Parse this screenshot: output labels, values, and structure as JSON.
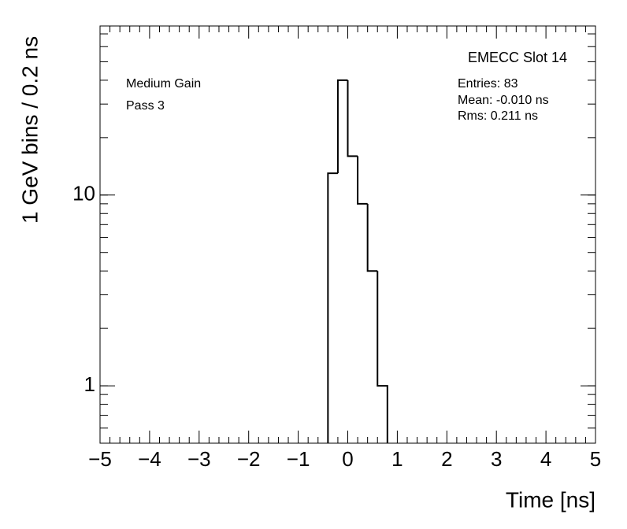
{
  "chart_data": {
    "type": "histogram",
    "title": "EMECC Slot 14",
    "annotations": [
      "Medium Gain",
      "Pass 3"
    ],
    "stats": [
      "Entries: 83",
      "Mean: -0.010 ns",
      "Rms: 0.211 ns"
    ],
    "x_label": "Time [ns]",
    "y_label": "1 GeV bins / 0.2 ns",
    "bins": [
      -0.4,
      -0.2,
      0,
      0.2,
      0.4,
      0.6,
      0.8
    ],
    "values": [
      13,
      40,
      16,
      9,
      4,
      1
    ],
    "color": "#000000",
    "log_y": true,
    "xlim": [
      -5,
      5
    ],
    "ylim": [
      0.5,
      77
    ],
    "xticks": [
      {
        "value": -5,
        "label": "−5"
      },
      {
        "value": -4,
        "label": "−4"
      },
      {
        "value": -3,
        "label": "−3"
      },
      {
        "value": -2,
        "label": "−2"
      },
      {
        "value": -1,
        "label": "−1"
      },
      0,
      1,
      2,
      3,
      4,
      5
    ],
    "yticks": [
      1,
      10
    ]
  }
}
